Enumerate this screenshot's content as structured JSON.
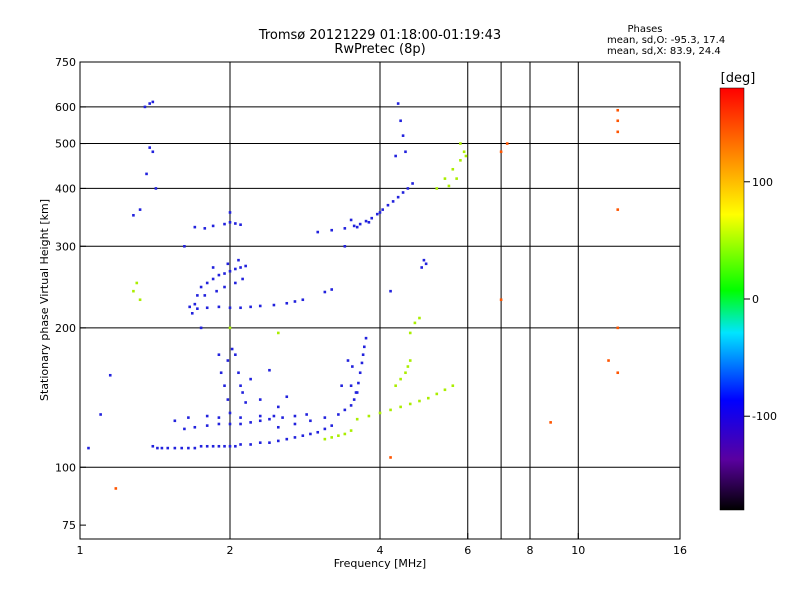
{
  "chart_data": {
    "type": "scatter",
    "title": "Tromsø 20121229 01:18:00-01:19:43",
    "subtitle": "RwPretec (8p)",
    "xlabel": "Frequency [MHz]",
    "ylabel": "Stationary phase Virtual Height [km]",
    "x_scale": "log",
    "y_scale": "log",
    "xlim": [
      1,
      16
    ],
    "ylim": [
      70,
      750
    ],
    "x_ticks": [
      1,
      2,
      4,
      6,
      8,
      10,
      16
    ],
    "y_ticks": [
      75,
      100,
      200,
      300,
      400,
      500,
      600,
      750
    ],
    "x_grid": [
      2,
      4,
      6,
      7,
      8,
      10
    ],
    "y_grid": [
      100,
      200,
      300,
      400,
      500,
      600
    ],
    "grid": true,
    "phases": {
      "heading": "Phases",
      "o_line": "mean, sd,O: -95.3, 17.4",
      "x_line": "mean, sd,X: 83.9, 24.4"
    },
    "colorbar": {
      "label": "[deg]",
      "min": -180,
      "max": 180,
      "ticks": [
        100,
        0,
        -100
      ]
    },
    "series": [
      {
        "points": [
          [
            1.4,
            111
          ],
          [
            1.43,
            110
          ],
          [
            1.46,
            110
          ],
          [
            1.5,
            110
          ],
          [
            1.55,
            110
          ],
          [
            1.6,
            110
          ],
          [
            1.65,
            110
          ],
          [
            1.7,
            110
          ],
          [
            1.75,
            111
          ],
          [
            1.8,
            111
          ],
          [
            1.85,
            111
          ],
          [
            1.9,
            111
          ],
          [
            1.95,
            111
          ],
          [
            2.0,
            111
          ],
          [
            2.05,
            111
          ],
          [
            2.1,
            112
          ],
          [
            2.2,
            112
          ],
          [
            2.3,
            113
          ],
          [
            2.4,
            113
          ],
          [
            2.5,
            114
          ],
          [
            2.6,
            115
          ],
          [
            2.7,
            116
          ],
          [
            2.8,
            117
          ],
          [
            2.9,
            118
          ],
          [
            3.0,
            119
          ],
          [
            3.1,
            121
          ],
          [
            3.2,
            123
          ],
          [
            1.62,
            121
          ],
          [
            1.7,
            122
          ],
          [
            1.8,
            123
          ],
          [
            1.9,
            124
          ],
          [
            2.0,
            124
          ],
          [
            2.1,
            124
          ],
          [
            2.2,
            125
          ],
          [
            2.3,
            126
          ],
          [
            2.4,
            127
          ],
          [
            2.55,
            128
          ],
          [
            2.7,
            129
          ],
          [
            2.85,
            130
          ],
          [
            1.55,
            126
          ],
          [
            1.65,
            128
          ],
          [
            1.8,
            129
          ],
          [
            1.9,
            128
          ],
          [
            2.1,
            128
          ],
          [
            2.3,
            129
          ],
          [
            2.45,
            129
          ],
          [
            1.92,
            160
          ],
          [
            1.95,
            150
          ],
          [
            1.98,
            140
          ],
          [
            2.0,
            131
          ],
          [
            1.98,
            170
          ],
          [
            2.05,
            175
          ],
          [
            2.08,
            160
          ],
          [
            2.1,
            150
          ],
          [
            2.12,
            145
          ],
          [
            2.15,
            138
          ],
          [
            1.9,
            175
          ],
          [
            2.02,
            180
          ],
          [
            2.2,
            155
          ],
          [
            2.4,
            162
          ],
          [
            2.3,
            140
          ],
          [
            2.5,
            135
          ],
          [
            2.6,
            142
          ],
          [
            1.68,
            215
          ],
          [
            1.7,
            225
          ],
          [
            1.72,
            235
          ],
          [
            1.75,
            245
          ],
          [
            1.8,
            250
          ],
          [
            1.85,
            255
          ],
          [
            1.9,
            260
          ],
          [
            1.95,
            262
          ],
          [
            2.0,
            265
          ],
          [
            2.05,
            268
          ],
          [
            2.1,
            270
          ],
          [
            2.15,
            272
          ],
          [
            1.66,
            222
          ],
          [
            1.72,
            220
          ],
          [
            1.8,
            221
          ],
          [
            1.9,
            222
          ],
          [
            2.0,
            221
          ],
          [
            2.1,
            221
          ],
          [
            2.2,
            222
          ],
          [
            2.3,
            223
          ],
          [
            2.45,
            224
          ],
          [
            2.6,
            226
          ],
          [
            2.7,
            228
          ],
          [
            2.8,
            230
          ],
          [
            3.1,
            239
          ],
          [
            3.2,
            242
          ],
          [
            1.78,
            235
          ],
          [
            1.88,
            240
          ],
          [
            1.95,
            245
          ],
          [
            2.05,
            250
          ],
          [
            2.12,
            255
          ],
          [
            1.85,
            270
          ],
          [
            1.98,
            275
          ],
          [
            2.08,
            280
          ],
          [
            1.7,
            330
          ],
          [
            1.78,
            328
          ],
          [
            1.85,
            332
          ],
          [
            1.95,
            335
          ],
          [
            2.0,
            338
          ],
          [
            2.05,
            336
          ],
          [
            2.1,
            334
          ],
          [
            2.0,
            355
          ],
          [
            3.0,
            322
          ],
          [
            3.2,
            325
          ],
          [
            3.4,
            328
          ],
          [
            3.55,
            332
          ],
          [
            3.65,
            335
          ],
          [
            3.75,
            340
          ],
          [
            3.85,
            345
          ],
          [
            3.95,
            352
          ],
          [
            4.05,
            360
          ],
          [
            4.15,
            368
          ],
          [
            4.25,
            375
          ],
          [
            4.35,
            383
          ],
          [
            4.45,
            392
          ],
          [
            4.55,
            400
          ],
          [
            4.65,
            410
          ],
          [
            3.5,
            342
          ],
          [
            3.6,
            330
          ],
          [
            3.8,
            338
          ],
          [
            4.0,
            355
          ],
          [
            3.3,
            130
          ],
          [
            3.4,
            133
          ],
          [
            3.5,
            136
          ],
          [
            3.55,
            140
          ],
          [
            3.6,
            145
          ],
          [
            3.62,
            152
          ],
          [
            3.65,
            160
          ],
          [
            3.68,
            168
          ],
          [
            3.7,
            175
          ],
          [
            3.72,
            182
          ],
          [
            3.75,
            190
          ],
          [
            3.5,
            150
          ],
          [
            3.45,
            170
          ],
          [
            3.52,
            165
          ],
          [
            3.58,
            145
          ],
          [
            3.35,
            150
          ],
          [
            2.5,
            122
          ],
          [
            2.7,
            124
          ],
          [
            2.9,
            126
          ],
          [
            3.1,
            128
          ],
          [
            4.5,
            480
          ],
          [
            4.45,
            520
          ],
          [
            4.4,
            560
          ],
          [
            4.35,
            610
          ],
          [
            4.3,
            470
          ],
          [
            1.35,
            600
          ],
          [
            1.38,
            610
          ],
          [
            1.4,
            615
          ],
          [
            1.38,
            490
          ],
          [
            1.4,
            480
          ],
          [
            1.42,
            400
          ],
          [
            1.36,
            430
          ],
          [
            1.32,
            360
          ],
          [
            1.28,
            350
          ],
          [
            1.62,
            300
          ],
          [
            1.75,
            200
          ],
          [
            3.4,
            300
          ],
          [
            4.2,
            240
          ],
          [
            4.85,
            270
          ],
          [
            4.9,
            280
          ],
          [
            4.95,
            275
          ],
          [
            1.15,
            158
          ],
          [
            1.1,
            130
          ],
          [
            1.04,
            110
          ]
        ]
      },
      {
        "points": [
          [
            3.6,
            127
          ],
          [
            3.8,
            129
          ],
          [
            4.0,
            131
          ],
          [
            4.2,
            133
          ],
          [
            4.4,
            135
          ],
          [
            4.6,
            137
          ],
          [
            4.8,
            139
          ],
          [
            5.0,
            141
          ],
          [
            5.2,
            144
          ],
          [
            5.4,
            147
          ],
          [
            5.6,
            150
          ],
          [
            3.1,
            115
          ],
          [
            3.2,
            116
          ],
          [
            3.3,
            117
          ],
          [
            3.4,
            118
          ],
          [
            3.5,
            120
          ],
          [
            4.3,
            150
          ],
          [
            4.4,
            155
          ],
          [
            4.5,
            160
          ],
          [
            4.55,
            165
          ],
          [
            4.6,
            170
          ],
          [
            5.2,
            400
          ],
          [
            5.4,
            420
          ],
          [
            5.6,
            440
          ],
          [
            5.8,
            460
          ],
          [
            5.9,
            480
          ],
          [
            5.7,
            420
          ],
          [
            5.5,
            405
          ],
          [
            5.8,
            500
          ],
          [
            5.95,
            470
          ],
          [
            1.3,
            250
          ],
          [
            1.28,
            240
          ],
          [
            1.32,
            230
          ],
          [
            2.0,
            200
          ],
          [
            2.5,
            195
          ],
          [
            4.6,
            195
          ],
          [
            4.7,
            205
          ],
          [
            4.8,
            210
          ]
        ]
      },
      {
        "points": [
          [
            7.0,
            480
          ],
          [
            7.2,
            500
          ],
          [
            12.0,
            590
          ],
          [
            12.0,
            530
          ],
          [
            12.0,
            560
          ],
          [
            12.0,
            360
          ],
          [
            12.0,
            160
          ],
          [
            4.2,
            105
          ],
          [
            7.0,
            230
          ],
          [
            1.18,
            90
          ],
          [
            8.8,
            125
          ],
          [
            12.0,
            200
          ],
          [
            11.5,
            170
          ]
        ]
      }
    ]
  }
}
